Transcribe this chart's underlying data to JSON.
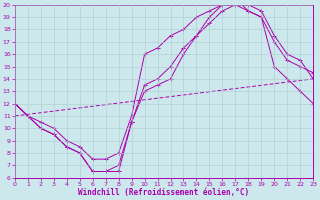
{
  "xlabel": "Windchill (Refroidissement éolien,°C)",
  "background_color": "#cce8ed",
  "grid_color": "#aacccc",
  "line_color": "#aa00aa",
  "xlim": [
    0,
    23
  ],
  "ylim": [
    6,
    20
  ],
  "xticks": [
    0,
    1,
    2,
    3,
    4,
    5,
    6,
    7,
    8,
    9,
    10,
    11,
    12,
    13,
    14,
    15,
    16,
    17,
    18,
    19,
    20,
    21,
    22,
    23
  ],
  "yticks": [
    6,
    7,
    8,
    9,
    10,
    11,
    12,
    13,
    14,
    15,
    16,
    17,
    18,
    19,
    20
  ],
  "curve1_x": [
    0,
    1,
    2,
    3,
    4,
    5,
    6,
    7,
    8,
    9,
    10,
    11,
    12,
    13,
    14,
    15,
    16,
    17,
    18,
    19,
    20,
    21,
    22,
    23
  ],
  "curve1_y": [
    12,
    11,
    10,
    9.5,
    8.5,
    8,
    6.5,
    6.5,
    7,
    10.5,
    13.5,
    14,
    15,
    16.5,
    17.5,
    18.5,
    19.5,
    20,
    19.5,
    19,
    17,
    15.5,
    15,
    14.5
  ],
  "curve2_x": [
    0,
    1,
    2,
    3,
    4,
    5,
    6,
    7,
    8,
    9,
    10,
    11,
    12,
    13,
    14,
    15,
    16,
    17,
    18,
    19,
    20,
    21,
    22,
    23
  ],
  "curve2_y": [
    12,
    11,
    10.5,
    10,
    9,
    8.5,
    7.5,
    7.5,
    8,
    11,
    16,
    16.5,
    17.5,
    18,
    19,
    19.5,
    20,
    20.5,
    20,
    19.5,
    17.5,
    16,
    15.5,
    14
  ],
  "curve3_x": [
    0,
    23
  ],
  "curve3_y": [
    11,
    14
  ],
  "curve4_x": [
    0,
    1,
    2,
    3,
    4,
    5,
    6,
    7,
    8,
    9,
    10,
    11,
    12,
    13,
    14,
    15,
    16,
    17,
    18,
    19,
    20,
    21,
    22,
    23
  ],
  "curve4_y": [
    12,
    11,
    10,
    9.5,
    8.5,
    8,
    6.5,
    6.5,
    6.5,
    10.5,
    13,
    13.5,
    14,
    16,
    17.5,
    19,
    20,
    20.5,
    19.5,
    19,
    15,
    14,
    13,
    12
  ]
}
